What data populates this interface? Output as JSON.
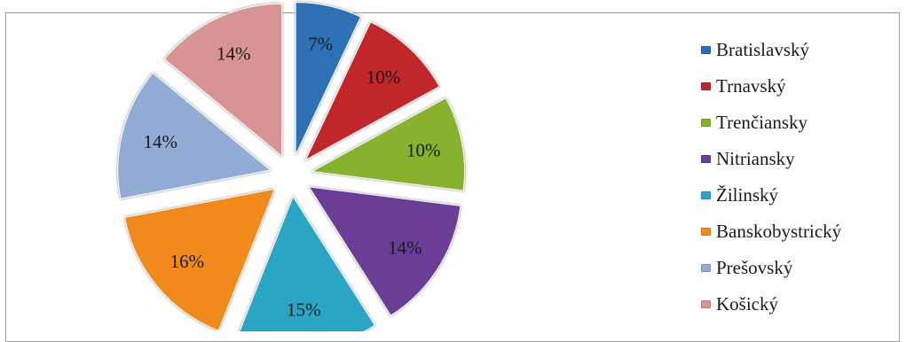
{
  "chart_data": {
    "type": "pie",
    "exploded": true,
    "legend_position": "right",
    "slices": [
      {
        "name": "Bratislavský",
        "value": 7,
        "label": "7%",
        "color": "#2e6fb5"
      },
      {
        "name": "Trnavský",
        "value": 10,
        "label": "10%",
        "color": "#c0282b"
      },
      {
        "name": "Trenčiansky",
        "value": 10,
        "label": "10%",
        "color": "#86b22d"
      },
      {
        "name": "Nitriansky",
        "value": 14,
        "label": "14%",
        "color": "#6a3d97"
      },
      {
        "name": "Žilinský",
        "value": 15,
        "label": "15%",
        "color": "#2ba6c4"
      },
      {
        "name": "Banskobystrický",
        "value": 16,
        "label": "16%",
        "color": "#f08a1c"
      },
      {
        "name": "Prešovský",
        "value": 14,
        "label": "14%",
        "color": "#93acd6"
      },
      {
        "name": "Košický",
        "value": 14,
        "label": "14%",
        "color": "#d89495"
      }
    ]
  }
}
